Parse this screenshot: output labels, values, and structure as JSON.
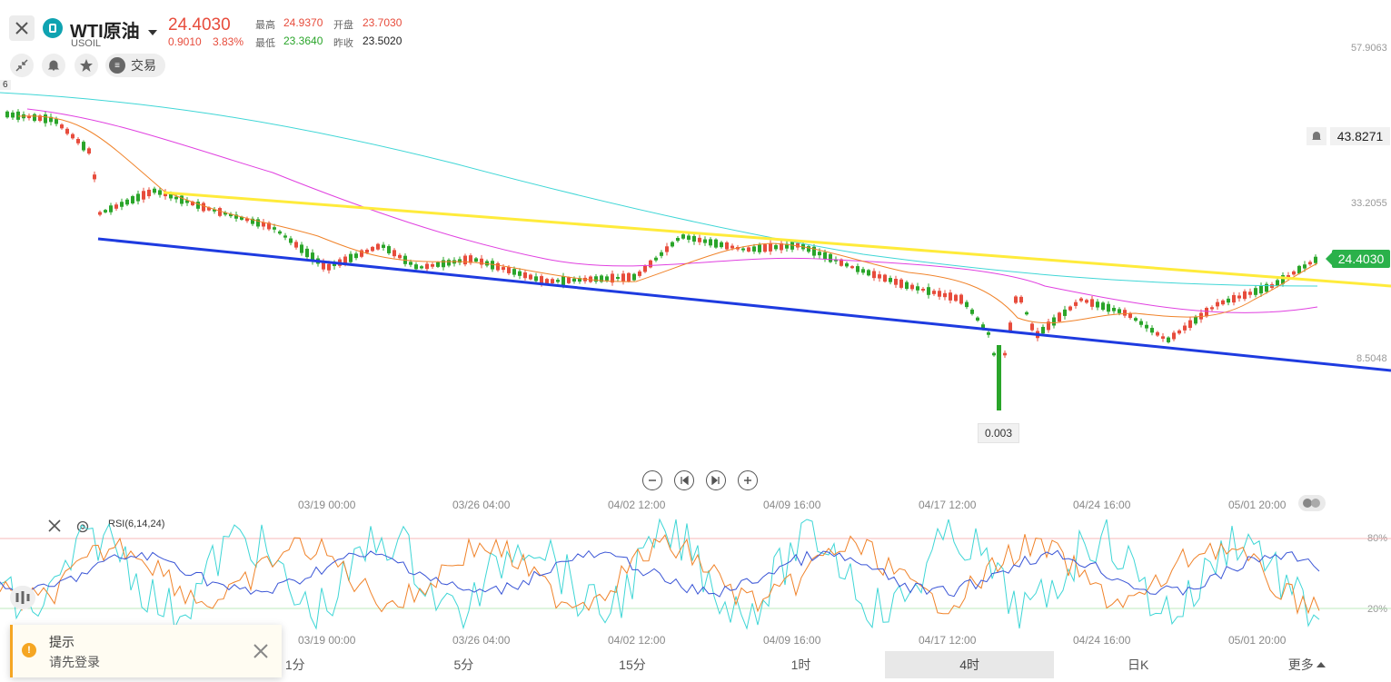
{
  "header": {
    "symbol_name": "WTI原油",
    "symbol_code": "USOIL",
    "last_price": "24.4030",
    "change": "0.9010",
    "change_pct": "3.83%",
    "high_label": "最高",
    "high_value": "24.9370",
    "open_label": "开盘",
    "open_value": "23.7030",
    "low_label": "最低",
    "low_value": "23.3640",
    "prev_close_label": "昨收",
    "prev_close_value": "23.5020",
    "trade_label": "交易"
  },
  "price_axis": {
    "labels": [
      "57.9063",
      "33.2055",
      "8.5048"
    ],
    "left_cut_label": "6"
  },
  "markers": {
    "current_price": "24.4030",
    "alert_price": "43.8271",
    "period_low": "0.003"
  },
  "time_axis": {
    "labels": [
      "03/19 00:00",
      "03/26 04:00",
      "04/02 12:00",
      "04/09 16:00",
      "04/17 12:00",
      "04/24 16:00",
      "05/01 20:00"
    ]
  },
  "rsi_panel": {
    "label": "RSI(6,14,24)",
    "levels": [
      "80%",
      "20%"
    ]
  },
  "timeframes": [
    {
      "label": "1分"
    },
    {
      "label": "5分"
    },
    {
      "label": "15分"
    },
    {
      "label": "1时"
    },
    {
      "label": "4时",
      "active": true
    },
    {
      "label": "日K"
    },
    {
      "label": "更多"
    }
  ],
  "toast": {
    "title": "提示",
    "message": "请先登录"
  },
  "colors": {
    "up": "#e74c3c",
    "down": "#2aa52a",
    "yellow_trendline": "#ffeb3b",
    "blue_trendline": "#1e3be0",
    "ma_orange": "#f0832a",
    "ma_magenta": "#e040e0",
    "ma_cyan": "#3fd6d6"
  }
}
